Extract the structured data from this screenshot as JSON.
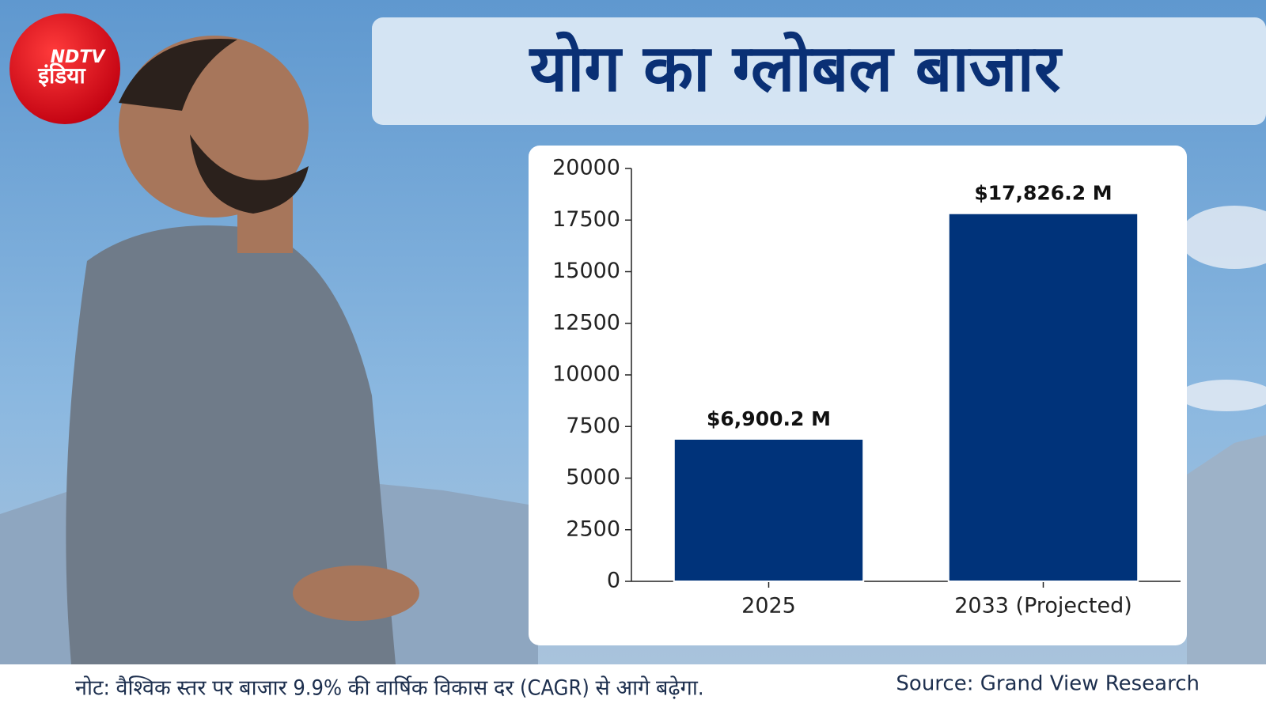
{
  "logo": {
    "brand": "NDTV",
    "sub": "इंडिया"
  },
  "chart_data": {
    "type": "bar",
    "title": "योग का ग्लोबल बाजार",
    "categories": [
      "2025",
      "2033 (Projected)"
    ],
    "values": [
      6900.2,
      17826.2
    ],
    "value_labels": [
      "$6,900.2 M",
      "$17,826.2 M"
    ],
    "color": "#00337a",
    "ylim": [
      0,
      20000
    ],
    "yticks": [
      0,
      2500,
      5000,
      7500,
      10000,
      12500,
      15000,
      17500,
      20000
    ],
    "grid": false
  },
  "footer": {
    "note": "नोट:  वैश्विक स्तर पर बाजार 9.9% की वार्षिक विकास दर (CAGR) से आगे बढ़ेगा.",
    "source": "Source: Grand View Research"
  }
}
